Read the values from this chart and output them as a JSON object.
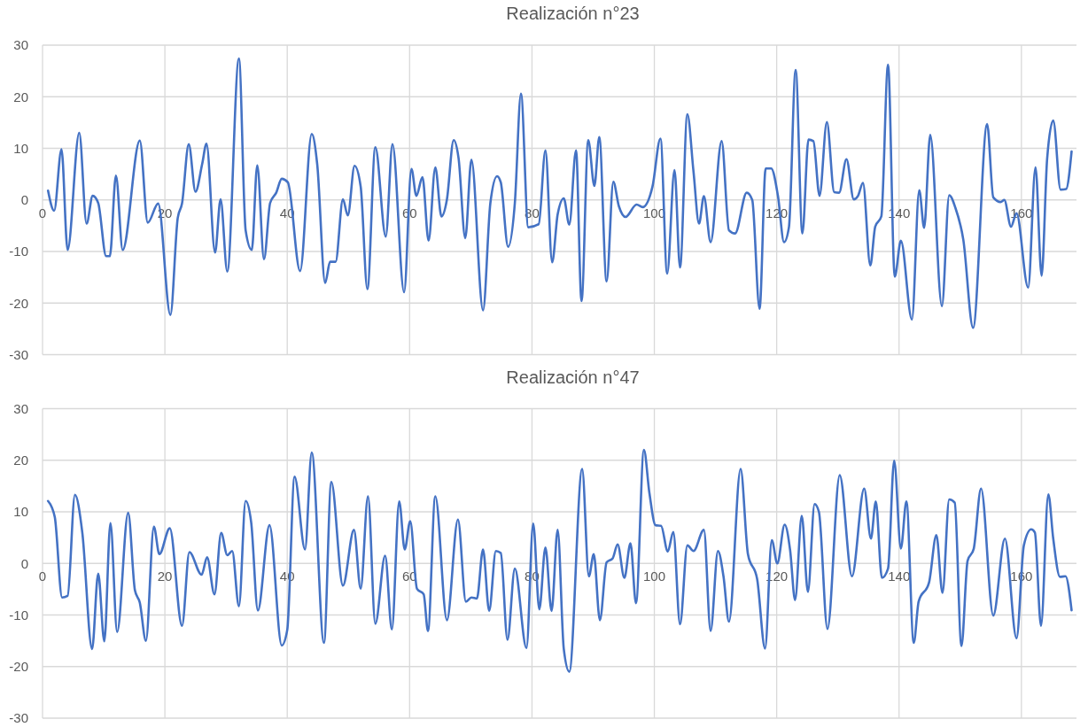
{
  "chart_data": [
    {
      "type": "line",
      "title": "Realización n°23",
      "xlim": [
        0,
        169
      ],
      "xticks": [
        0,
        20,
        40,
        60,
        80,
        100,
        120,
        140,
        160
      ],
      "ylim": [
        -30,
        30
      ],
      "yticks": [
        -30,
        -20,
        -10,
        0,
        10,
        20,
        30
      ],
      "grid": true,
      "series": [
        {
          "color": "#4472c4",
          "x": [
            0.9,
            1.9,
            3.1,
            4.1,
            6.0,
            7.2,
            8.2,
            9.1,
            10.4,
            11.0,
            12.0,
            13.1,
            15.9,
            17.2,
            18.9,
            20.9,
            22.1,
            22.8,
            23.9,
            25.0,
            26.1,
            26.8,
            28.2,
            29.1,
            30.2,
            32.1,
            33.2,
            34.2,
            35.1,
            36.2,
            37.2,
            38.2,
            39.1,
            40.1,
            42.1,
            44.0,
            44.9,
            46.2,
            47.0,
            47.9,
            49.1,
            49.9,
            51.0,
            52.0,
            53.1,
            54.4,
            56.1,
            57.2,
            59.1,
            60.3,
            61.1,
            62.1,
            63.1,
            64.2,
            65.2,
            66.1,
            67.2,
            68.0,
            69.1,
            70.1,
            72.0,
            73.2,
            74.3,
            74.9,
            76.1,
            77.2,
            78.2,
            79.4,
            81.1,
            82.2,
            83.3,
            84.2,
            85.2,
            86.1,
            87.2,
            88.1,
            89.2,
            90.2,
            91.0,
            92.2,
            93.3,
            94.2,
            95.3,
            97.1,
            98.1,
            99.7,
            101.0,
            102.1,
            103.3,
            104.2,
            105.4,
            106.4,
            107.3,
            108.1,
            109.2,
            111.0,
            112.2,
            113.2,
            115.1,
            116.0,
            117.2,
            118.2,
            119.1,
            120.2,
            121.2,
            122.0,
            123.1,
            124.2,
            125.2,
            126.0,
            127.0,
            128.2,
            129.4,
            130.2,
            131.4,
            132.6,
            133.3,
            134.1,
            135.3,
            136.1,
            137.1,
            138.2,
            139.3,
            140.3,
            142.1,
            143.3,
            144.1,
            145.1,
            147.0,
            148.2,
            149.2,
            150.5,
            152.1,
            154.4,
            155.4,
            156.6,
            157.2,
            158.3,
            159.2,
            161.1,
            162.3,
            163.3,
            164.2,
            165.2,
            166.4,
            167.3,
            168.2
          ],
          "values": [
            1.8,
            -2.1,
            9.8,
            -9.7,
            13,
            -4.6,
            0.8,
            -0.6,
            -10.9,
            -10.9,
            4.7,
            -9.7,
            11.5,
            -4.4,
            -0.7,
            -22.3,
            -3.5,
            -0.7,
            10.8,
            1.6,
            7,
            10.9,
            -10.2,
            0.1,
            -13.9,
            27.4,
            -5.9,
            -9.7,
            6.7,
            -11.5,
            -0.6,
            1.4,
            4.1,
            3.4,
            -13.8,
            12.8,
            6.9,
            -16.1,
            -12,
            -12,
            0.1,
            -3,
            6.6,
            2.6,
            -17.3,
            10.2,
            -7.1,
            10.8,
            -17.9,
            6,
            0.8,
            4.4,
            -7.9,
            6.3,
            -3.2,
            0.1,
            11.6,
            8.1,
            -7.4,
            7.8,
            -21.4,
            -0.6,
            4.6,
            3.4,
            -9.1,
            -0.6,
            20.6,
            -5.3,
            -4.7,
            9.6,
            -12.1,
            -2.8,
            0.3,
            -4.8,
            9.6,
            -19.6,
            11.6,
            2.7,
            12.2,
            -15.8,
            3.5,
            -1.2,
            -3.3,
            -0.9,
            -1.4,
            2.6,
            11.9,
            -14.3,
            5.8,
            -13.1,
            16.6,
            5.5,
            -4.6,
            0.7,
            -8.2,
            11.4,
            -5.9,
            -6.5,
            1.4,
            0,
            -21.1,
            6.1,
            6.1,
            0.8,
            -8.2,
            -5.3,
            25.2,
            -6.5,
            11.7,
            11.4,
            0.8,
            15.1,
            1.5,
            1.4,
            7.9,
            0.1,
            0.8,
            3.3,
            -12.7,
            -5.2,
            -3.2,
            26.2,
            -14.9,
            -7.9,
            -23.2,
            1.9,
            -5.4,
            12.6,
            -20.6,
            0.9,
            -1.5,
            -7.7,
            -24.8,
            14.7,
            0.5,
            -0.4,
            0,
            -5.2,
            -2.6,
            -17,
            6.3,
            -14.7,
            7.9,
            15.4,
            2,
            2.1,
            9.4
          ]
        }
      ]
    },
    {
      "type": "line",
      "title": "Realización n°47",
      "xlim": [
        0,
        169
      ],
      "xticks": [
        0,
        20,
        40,
        60,
        80,
        100,
        120,
        140,
        160
      ],
      "ylim": [
        -30,
        30
      ],
      "yticks": [
        -30,
        -20,
        -10,
        0,
        10,
        20,
        30
      ],
      "grid": true,
      "series": [
        {
          "color": "#4472c4",
          "x": [
            0.9,
            2.0,
            3.2,
            4.1,
            5.3,
            6.5,
            8.1,
            9.1,
            10.1,
            11.1,
            12.2,
            14.0,
            15.1,
            15.9,
            16.9,
            18.2,
            19.1,
            20.8,
            22.8,
            24.0,
            26.0,
            26.9,
            28.1,
            29.2,
            30.2,
            31.0,
            32.1,
            33.2,
            34.1,
            35.2,
            37.1,
            39.1,
            40.0,
            41.2,
            42.9,
            44.0,
            46.0,
            47.2,
            49.1,
            50.9,
            52.0,
            53.2,
            54.4,
            56.0,
            57.1,
            58.3,
            59.2,
            60.1,
            61.2,
            62.3,
            63.0,
            64.2,
            66.1,
            67.9,
            69.2,
            70.1,
            71.0,
            72.0,
            73.0,
            74.1,
            74.9,
            76.0,
            77.2,
            79.1,
            80.2,
            81.2,
            82.2,
            83.2,
            84.2,
            85.2,
            86.1,
            88.2,
            89.3,
            90.1,
            91.1,
            92.2,
            93.2,
            94.0,
            95.1,
            96.1,
            97.0,
            98.3,
            99.2,
            100.2,
            101.1,
            102.2,
            103.1,
            104.2,
            105.4,
            106.4,
            108.1,
            109.2,
            110.4,
            111.3,
            112.2,
            114.1,
            115.3,
            116.8,
            118.1,
            119.2,
            120.1,
            121.3,
            122.2,
            123.0,
            124.1,
            125.1,
            126.2,
            126.9,
            128.3,
            130.3,
            132.3,
            134.3,
            135.4,
            136.2,
            137.2,
            138.2,
            139.2,
            140.3,
            141.2,
            142.4,
            143.2,
            144.9,
            146.1,
            147.1,
            148.2,
            149.1,
            150.2,
            151.2,
            152.2,
            153.4,
            155.4,
            157.3,
            159.2,
            160.4,
            161.6,
            162.2,
            163.2,
            164.4,
            165.2,
            166.3,
            167.2,
            168.2
          ],
          "values": [
            12.1,
            9,
            -6.6,
            -6.3,
            13.3,
            6,
            -16.6,
            -2,
            -15.1,
            7.8,
            -13.3,
            9.8,
            -5.2,
            -7.6,
            -15,
            7.1,
            1.8,
            6.8,
            -12.1,
            2.2,
            -2.2,
            1.2,
            -6,
            5.9,
            1.6,
            2.4,
            -8.3,
            12.1,
            8,
            -9.1,
            7.4,
            -15.9,
            -12.9,
            16.8,
            2.7,
            21.5,
            -15.4,
            15.8,
            -4.3,
            6.5,
            -4.9,
            13,
            -11.7,
            1.5,
            -12.8,
            12,
            2.7,
            8.2,
            -4.9,
            -6,
            -13.1,
            13,
            -11,
            8.5,
            -7.4,
            -6.6,
            -6.8,
            2.7,
            -9.2,
            2.4,
            2,
            -14.8,
            -1,
            -16.4,
            7.7,
            -8.9,
            3.1,
            -9.2,
            6.5,
            -16.6,
            -21,
            18.3,
            -2.5,
            1.8,
            -11,
            0.2,
            1,
            3.7,
            -2.8,
            3.9,
            -7.7,
            22,
            13.6,
            7.4,
            7.3,
            2.3,
            6.1,
            -11.8,
            3.5,
            2.4,
            6.5,
            -13.1,
            2.4,
            -2.5,
            -11.3,
            18.3,
            1.8,
            -3,
            -16.5,
            4.5,
            0,
            7.5,
            2.5,
            -7.1,
            9.2,
            -5.5,
            11.5,
            10,
            -12.7,
            17.1,
            -2.5,
            14.5,
            4.8,
            12,
            -2.8,
            -1,
            19.9,
            2.9,
            12,
            -15.4,
            -7.4,
            -3.7,
            5.5,
            -5.7,
            12.4,
            11.8,
            -16,
            0.5,
            2.8,
            14.5,
            -10.1,
            4.8,
            -14.5,
            3.5,
            6.6,
            6,
            -12.1,
            13.4,
            4.8,
            -2.6,
            -2.5,
            -9.1
          ]
        }
      ]
    }
  ]
}
